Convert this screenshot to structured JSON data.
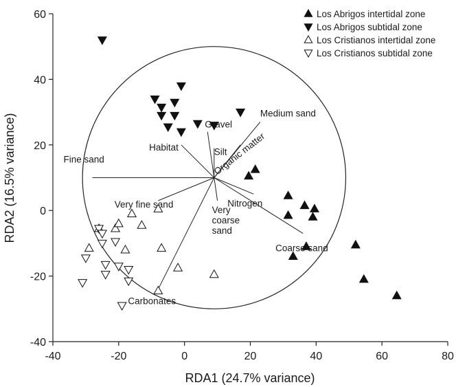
{
  "chart_data": {
    "type": "scatter",
    "xlabel": "RDA1 (24.7% variance)",
    "ylabel": "RDA2 (16.5% variance)",
    "xlim": [
      -40,
      80
    ],
    "ylim": [
      -40,
      60
    ],
    "xticks": [
      -40,
      -20,
      0,
      20,
      40,
      60,
      80
    ],
    "yticks": [
      -40,
      -20,
      0,
      20,
      40,
      60
    ],
    "xtick_labels": [
      "-40",
      "-20",
      "0",
      "20",
      "40",
      "60",
      "80"
    ],
    "ytick_labels": [
      "-40",
      "-20",
      "0",
      "20",
      "40",
      "60"
    ],
    "grid": false,
    "legend_position": "top-right",
    "series": [
      {
        "name": "Los Abrigos intertidal zone",
        "marker": "triangle-up-filled",
        "points": [
          [
            19.5,
            10.5
          ],
          [
            21.5,
            12.5
          ],
          [
            31.5,
            4.5
          ],
          [
            31.5,
            -1.5
          ],
          [
            36.5,
            1.5
          ],
          [
            39.5,
            0.5
          ],
          [
            39,
            -2
          ],
          [
            37,
            -11
          ],
          [
            33,
            -14
          ],
          [
            52,
            -10.5
          ],
          [
            54.5,
            -21
          ],
          [
            64.5,
            -26
          ]
        ]
      },
      {
        "name": "Los Abrigos subtidal zone",
        "marker": "triangle-down-filled",
        "points": [
          [
            -25,
            52
          ],
          [
            -1,
            38
          ],
          [
            -9,
            34
          ],
          [
            -7,
            31.5
          ],
          [
            -3,
            33
          ],
          [
            -3,
            29
          ],
          [
            -7,
            29
          ],
          [
            -5,
            25.5
          ],
          [
            -1,
            24
          ],
          [
            4,
            26.5
          ],
          [
            9,
            26
          ],
          [
            17,
            30
          ]
        ]
      },
      {
        "name": "Los Cristianos intertidal zone",
        "marker": "triangle-up-open",
        "points": [
          [
            -26,
            -5.5
          ],
          [
            -29,
            -11.5
          ],
          [
            -21,
            -5.5
          ],
          [
            -20,
            -4
          ],
          [
            -16,
            -1
          ],
          [
            -13,
            -4.5
          ],
          [
            -18,
            -12
          ],
          [
            -8,
            0.5
          ],
          [
            -7,
            -11.5
          ],
          [
            -2,
            -17.5
          ],
          [
            -8,
            -24.5
          ],
          [
            9,
            -19.5
          ]
        ]
      },
      {
        "name": "Los Cristianos subtidal zone",
        "marker": "triangle-down-open",
        "points": [
          [
            -26,
            -5.5
          ],
          [
            -25,
            -7
          ],
          [
            -25,
            -10
          ],
          [
            -21,
            -9.5
          ],
          [
            -30,
            -14.5
          ],
          [
            -24,
            -16.5
          ],
          [
            -20,
            -17
          ],
          [
            -17,
            -18
          ],
          [
            -24,
            -19.5
          ],
          [
            -17,
            -21.5
          ],
          [
            -31,
            -22
          ],
          [
            -19,
            -29
          ]
        ]
      }
    ],
    "environmental_vectors": [
      {
        "name": "Medium sand",
        "end": [
          23,
          27
        ]
      },
      {
        "name": "Gravel",
        "end": [
          7,
          24
        ]
      },
      {
        "name": "Organic matter",
        "end": [
          17,
          20
        ]
      },
      {
        "name": "Habitat",
        "end": [
          -1,
          20
        ]
      },
      {
        "name": "Silt",
        "end": [
          9,
          19
        ]
      },
      {
        "name": "Fine sand",
        "end": [
          -28,
          10
        ]
      },
      {
        "name": "Nitrogen",
        "end": [
          21,
          5
        ]
      },
      {
        "name": "Very fine sand",
        "end": [
          -8,
          3
        ]
      },
      {
        "name": "Very coarse sand",
        "end": [
          10,
          3
        ]
      },
      {
        "name": "Coarse sand",
        "end": [
          36,
          -7
        ]
      },
      {
        "name": "Carbonates",
        "end": [
          -8,
          -24
        ]
      }
    ],
    "circle": {
      "center": [
        9,
        10
      ],
      "radius": 40
    }
  }
}
